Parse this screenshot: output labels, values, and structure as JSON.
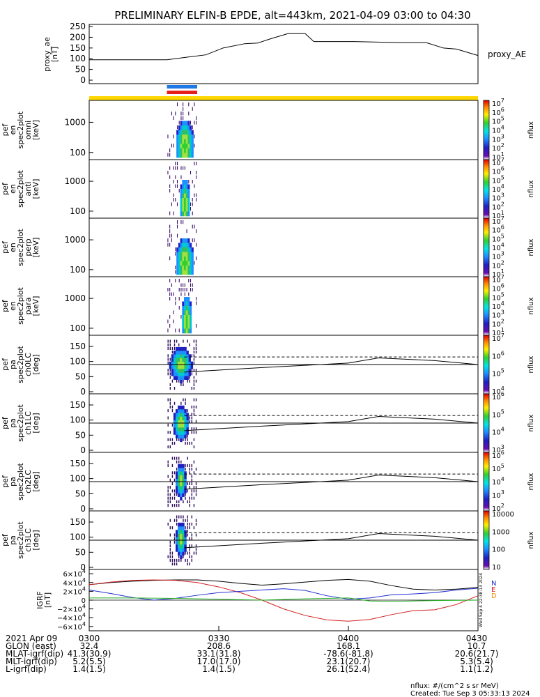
{
  "title": "PRELIMINARY ELFIN-B EPDE, alt=443km, 2021-04-09 03:00 to 04:30",
  "colors": {
    "bar_blue": "#1e78e6",
    "bar_red": "#e61e1e",
    "bar_yellow": "#ffd700",
    "grf_black": "#000000",
    "grf_red": "#d22020",
    "grf_blue": "#2030d0",
    "grf_green": "#20b020"
  },
  "panels": {
    "ae": {
      "ylabel_lines": [
        "proxy_ae",
        "[nT]"
      ],
      "legend": "proxy_AE",
      "yticks": [
        "250",
        "200",
        "150",
        "100",
        "50",
        "0"
      ]
    },
    "spec_energy": [
      {
        "ylabel_lines": [
          "elb",
          "pef",
          "en",
          "spec2plot",
          "omni",
          "[keV]"
        ]
      },
      {
        "ylabel_lines": [
          "elb",
          "pef",
          "en",
          "spec2plot",
          "anti",
          "[keV]"
        ]
      },
      {
        "ylabel_lines": [
          "elb",
          "pef",
          "en",
          "spec2plot",
          "perp",
          "[keV]"
        ]
      },
      {
        "ylabel_lines": [
          "elb",
          "pef",
          "en",
          "spec2plot",
          "para",
          "[keV]"
        ]
      }
    ],
    "energy_yticks": [
      "1000",
      "100"
    ],
    "spec_pa": [
      {
        "ylabel_lines": [
          "elb",
          "pef",
          "pa",
          "spec2plot",
          "ch0LC",
          "[deg]"
        ]
      },
      {
        "ylabel_lines": [
          "elb",
          "pef",
          "pa",
          "spec2plot",
          "ch1LC",
          "[deg]"
        ]
      },
      {
        "ylabel_lines": [
          "elb",
          "pef",
          "pa",
          "spec2plot",
          "ch2LC",
          "[deg]"
        ]
      },
      {
        "ylabel_lines": [
          "elb",
          "pef",
          "pa",
          "spec2plot",
          "ch3LC",
          "[deg]"
        ]
      }
    ],
    "pa_yticks": [
      "150",
      "100",
      "50",
      "0"
    ],
    "grf": {
      "ylabel_lines": [
        "IGRF",
        "[nT]"
      ],
      "legend": [
        "N",
        "E",
        "D"
      ],
      "sidebar": "Wed Sep  4 22:38:13 2024"
    }
  },
  "colorbars": {
    "unit": "nflux",
    "energy_ticks": [
      {
        "b": "10",
        "e": "7"
      },
      {
        "b": "10",
        "e": "6"
      },
      {
        "b": "10",
        "e": "5"
      },
      {
        "b": "10",
        "e": "4"
      },
      {
        "b": "10",
        "e": "3"
      },
      {
        "b": "10",
        "e": "2"
      },
      {
        "b": "10",
        "e": "1"
      }
    ],
    "pa": [
      [
        {
          "b": "10",
          "e": "7"
        },
        {
          "b": "10",
          "e": "6"
        },
        {
          "b": "10",
          "e": "5"
        },
        {
          "b": "10",
          "e": "4"
        }
      ],
      [
        {
          "b": "10",
          "e": "6"
        },
        {
          "b": "10",
          "e": "5"
        },
        {
          "b": "10",
          "e": "4"
        },
        {
          "b": "10",
          "e": "3"
        }
      ],
      [
        {
          "b": "10",
          "e": "6"
        },
        {
          "b": "10",
          "e": "5"
        },
        {
          "b": "10",
          "e": "4"
        },
        {
          "b": "10",
          "e": "3"
        },
        {
          "b": "10",
          "e": "2"
        }
      ],
      [
        {
          "b": "10000",
          "e": ""
        },
        {
          "b": "1000",
          "e": ""
        },
        {
          "b": "100",
          "e": ""
        },
        {
          "b": "10",
          "e": ""
        }
      ]
    ]
  },
  "chart_data": [
    {
      "type": "line",
      "title": "PRELIMINARY ELFIN-B EPDE, alt=443km, 2021-04-09 03:00 to 04:30",
      "ylabel": "proxy_ae [nT]",
      "ylim": [
        0,
        260
      ],
      "x_unit": "UT",
      "series": [
        {
          "name": "proxy_AE",
          "x": [
            "03:00",
            "03:13",
            "03:18",
            "03:23",
            "03:27",
            "03:31",
            "03:36",
            "03:39",
            "03:42",
            "03:46",
            "03:50",
            "03:52",
            "04:01",
            "04:12",
            "04:18",
            "04:22",
            "04:25",
            "04:30"
          ],
          "values": [
            95,
            95,
            95,
            108,
            118,
            150,
            170,
            173,
            193,
            217,
            217,
            180,
            180,
            175,
            175,
            150,
            145,
            115
          ]
        }
      ]
    },
    {
      "type": "heatmap",
      "panels": [
        "omni",
        "anti",
        "perp",
        "para"
      ],
      "ylabel": "energy [keV]",
      "ylim": [
        50,
        7000
      ],
      "log_y": true,
      "x_range": [
        "03:18",
        "03:25"
      ],
      "colorbar": {
        "label": "nflux",
        "range": [
          10,
          10000000
        ]
      }
    },
    {
      "type": "heatmap",
      "panels": [
        "ch0LC",
        "ch1LC",
        "ch2LC",
        "ch3LC"
      ],
      "ylabel": "pitch angle [deg]",
      "ylim": [
        0,
        180
      ],
      "reference_lines": [
        {
          "name": "90 deg",
          "y": 90
        },
        {
          "name": "loss cone",
          "x": [
            "03:22",
            "03:40",
            "04:00",
            "04:07",
            "04:20",
            "04:30"
          ],
          "values": [
            65,
            80,
            95,
            112,
            103,
            90
          ]
        },
        {
          "name": "anti loss cone",
          "style": "dashed",
          "x": [
            "03:22",
            "04:30"
          ],
          "values": [
            115,
            115
          ]
        }
      ]
    },
    {
      "type": "line",
      "ylabel": "IGRF [nT]",
      "ylim": [
        -65000,
        65000
      ],
      "yticks": [
        60000,
        40000,
        20000,
        0,
        -20000,
        -40000,
        -60000
      ],
      "series": [
        {
          "name": "black",
          "x": [
            "03:00",
            "03:05",
            "03:10",
            "03:15",
            "03:20",
            "03:25",
            "03:30",
            "03:35",
            "03:40",
            "03:45",
            "03:50",
            "03:55",
            "04:00",
            "04:05",
            "04:10",
            "04:15",
            "04:20",
            "04:25",
            "04:30"
          ],
          "values": [
            35000,
            40000,
            43000,
            45000,
            46000,
            46000,
            43000,
            38000,
            34000,
            37000,
            41000,
            45000,
            47000,
            43000,
            33000,
            25000,
            23000,
            25000,
            29000
          ]
        },
        {
          "name": "red",
          "x": [
            "03:00",
            "03:05",
            "03:10",
            "03:15",
            "03:20",
            "03:25",
            "03:30",
            "03:35",
            "03:40",
            "03:45",
            "03:50",
            "03:55",
            "04:00",
            "04:05",
            "04:10",
            "04:15",
            "04:20",
            "04:25",
            "04:30"
          ],
          "values": [
            35000,
            41000,
            45000,
            46000,
            45000,
            40000,
            30000,
            17000,
            0,
            -20000,
            -35000,
            -45000,
            -48000,
            -44000,
            -33000,
            -24000,
            -22000,
            -10000,
            10000
          ]
        },
        {
          "name": "blue",
          "x": [
            "03:00",
            "03:05",
            "03:10",
            "03:15",
            "03:20",
            "03:25",
            "03:30",
            "03:35",
            "03:40",
            "03:45",
            "03:50",
            "03:55",
            "04:00",
            "04:05",
            "04:10",
            "04:15",
            "04:20",
            "04:25",
            "04:30"
          ],
          "values": [
            23000,
            15000,
            6000,
            0,
            4000,
            11000,
            17000,
            20000,
            23000,
            26000,
            22000,
            10000,
            2000,
            5000,
            12000,
            14000,
            17000,
            23000,
            27000
          ]
        },
        {
          "name": "green",
          "x": [
            "03:00",
            "03:10",
            "03:20",
            "03:30",
            "03:40",
            "03:50",
            "04:00",
            "04:05",
            "04:10",
            "04:20",
            "04:30"
          ],
          "values": [
            5000,
            5000,
            4000,
            2000,
            0,
            3000,
            5000,
            -2000,
            -3000,
            -1000,
            0
          ]
        }
      ]
    }
  ],
  "ephemeris": {
    "rows": [
      {
        "label": "2021 Apr 09",
        "values": [
          "0300",
          "0330",
          "0400",
          "0430"
        ]
      },
      {
        "label": "GLON (east)",
        "values": [
          "32.4",
          "208.6",
          "168.1",
          "10.7"
        ]
      },
      {
        "label": "MLAT-igrf(dip)",
        "values": [
          "41.3(30.9)",
          "33.1(31.8)",
          "-78.6(-81.8)",
          "20.6(21.7)"
        ]
      },
      {
        "label": "MLT-igrf(dip)",
        "values": [
          "5.2(5.5)",
          "17.0(17.0)",
          "23.1(20.7)",
          "5.3(5.4)"
        ]
      },
      {
        "label": "L-igrf(dip)",
        "values": [
          "1.4(1.5)",
          "1.4(1.5)",
          "26.1(52.4)",
          "1.1(1.2)"
        ]
      }
    ]
  },
  "footer": {
    "unit_note": "nflux: #/(cm^2 s sr MeV)",
    "created": "Created: Tue Sep  3 05:33:13 2024"
  }
}
